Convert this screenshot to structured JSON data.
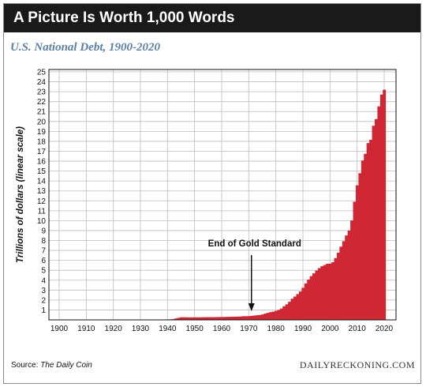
{
  "header": {
    "banner_title": "A Picture Is Worth 1,000 Words",
    "subtitle": "U.S. National Debt, 1900-2020"
  },
  "footer": {
    "source_label": "Source:",
    "source_name": "The Daily Coin",
    "brand": "DAILYRECKONING.COM"
  },
  "colors": {
    "bars": "#cf2734",
    "banner": "#1a1a1a",
    "subtitle": "#5b7fa6",
    "grid": "#bdbdbd"
  },
  "chart_data": {
    "type": "bar",
    "title": "U.S. National Debt, 1900-2020",
    "ylabel": "Trillions of dollars (linear scale)",
    "xlabel": "",
    "xlim": [
      1900,
      2020
    ],
    "ylim": [
      0,
      25
    ],
    "x_ticks": [
      1900,
      1910,
      1920,
      1930,
      1940,
      1950,
      1960,
      1970,
      1980,
      1990,
      2000,
      2010,
      2020
    ],
    "y_ticks": [
      1,
      2,
      3,
      4,
      5,
      6,
      7,
      8,
      9,
      10,
      11,
      12,
      13,
      14,
      15,
      16,
      17,
      18,
      19,
      20,
      21,
      22,
      23,
      24,
      25
    ],
    "grid": true,
    "annotation": {
      "text": "End of Gold Standard",
      "x": 1971
    },
    "series": [
      {
        "x": [
          1900,
          1901,
          1902,
          1903,
          1904,
          1905,
          1906,
          1907,
          1908,
          1909,
          1910,
          1911,
          1912,
          1913,
          1914,
          1915,
          1916,
          1917,
          1918,
          1919,
          1920,
          1921,
          1922,
          1923,
          1924,
          1925,
          1926,
          1927,
          1928,
          1929,
          1930,
          1931,
          1932,
          1933,
          1934,
          1935,
          1936,
          1937,
          1938,
          1939,
          1940,
          1941,
          1942,
          1943,
          1944,
          1945,
          1946,
          1947,
          1948,
          1949,
          1950,
          1951,
          1952,
          1953,
          1954,
          1955,
          1956,
          1957,
          1958,
          1959,
          1960,
          1961,
          1962,
          1963,
          1964,
          1965,
          1966,
          1967,
          1968,
          1969,
          1970,
          1971,
          1972,
          1973,
          1974,
          1975,
          1976,
          1977,
          1978,
          1979,
          1980,
          1981,
          1982,
          1983,
          1984,
          1985,
          1986,
          1987,
          1988,
          1989,
          1990,
          1991,
          1992,
          1993,
          1994,
          1995,
          1996,
          1997,
          1998,
          1999,
          2000,
          2001,
          2002,
          2003,
          2004,
          2005,
          2006,
          2007,
          2008,
          2009,
          2010,
          2011,
          2012,
          2013,
          2014,
          2015,
          2016,
          2017,
          2018,
          2019,
          2020
        ],
        "values": [
          0.002,
          0.002,
          0.002,
          0.002,
          0.002,
          0.002,
          0.002,
          0.003,
          0.003,
          0.003,
          0.003,
          0.003,
          0.003,
          0.003,
          0.003,
          0.003,
          0.003,
          0.006,
          0.012,
          0.025,
          0.024,
          0.024,
          0.023,
          0.022,
          0.021,
          0.021,
          0.02,
          0.019,
          0.018,
          0.017,
          0.016,
          0.017,
          0.019,
          0.023,
          0.027,
          0.029,
          0.034,
          0.036,
          0.037,
          0.04,
          0.043,
          0.049,
          0.072,
          0.137,
          0.201,
          0.259,
          0.269,
          0.258,
          0.252,
          0.253,
          0.257,
          0.255,
          0.259,
          0.266,
          0.271,
          0.274,
          0.273,
          0.272,
          0.28,
          0.287,
          0.291,
          0.293,
          0.303,
          0.31,
          0.316,
          0.322,
          0.328,
          0.34,
          0.369,
          0.366,
          0.381,
          0.408,
          0.436,
          0.466,
          0.484,
          0.542,
          0.629,
          0.706,
          0.777,
          0.829,
          0.909,
          0.995,
          1.14,
          1.37,
          1.57,
          1.82,
          2.13,
          2.35,
          2.6,
          2.86,
          3.23,
          3.67,
          4.06,
          4.41,
          4.69,
          4.97,
          5.22,
          5.41,
          5.53,
          5.66,
          5.67,
          5.81,
          6.23,
          6.78,
          7.38,
          7.93,
          8.51,
          9.01,
          10.02,
          11.91,
          13.56,
          14.79,
          16.07,
          16.74,
          17.82,
          18.15,
          19.57,
          20.24,
          21.52,
          22.72,
          23.2
        ]
      }
    ]
  }
}
